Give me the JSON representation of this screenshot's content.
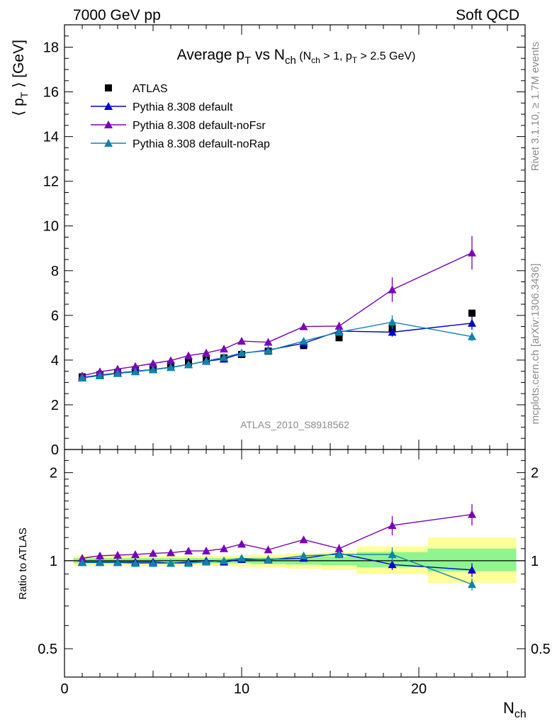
{
  "header": {
    "left": "7000 GeV pp",
    "right": "Soft QCD"
  },
  "side_labels": {
    "rivet": "Rivet 3.1.10, ≥ 1.7M events",
    "mcplots": "mcplots.cern.ch [arXiv:1306.3436]"
  },
  "analysis_id": "ATLAS_2010_S8918562",
  "chart_data": [
    {
      "type": "scatter",
      "title": "Average pT vs Nch (Nch > 1, pT > 2.5 GeV)",
      "ylabel": "⟨ pT ⟩ [GeV]",
      "xlabel": "Nch",
      "xlim": [
        0,
        26
      ],
      "ylim": [
        0,
        19
      ],
      "yticks": [
        0,
        2,
        4,
        6,
        8,
        10,
        12,
        14,
        16,
        18
      ],
      "xticks": [
        0,
        10,
        20
      ],
      "legend": [
        "ATLAS",
        "Pythia 8.308 default",
        "Pythia 8.308 default-noFsr",
        "Pythia 8.308 default-noRap"
      ],
      "legend_position": "top-left",
      "colors": {
        "data": "#000000",
        "default": "#0000cc",
        "noFsr": "#7a00b8",
        "noRap": "#0e84a8"
      },
      "x": [
        1,
        2,
        3,
        4,
        5,
        6,
        7,
        8,
        9,
        10,
        11.5,
        13.5,
        15.5,
        18.5,
        23
      ],
      "series": [
        {
          "name": "ATLAS",
          "marker": "square",
          "values": [
            3.25,
            3.35,
            3.45,
            3.55,
            3.65,
            3.78,
            3.9,
            4.0,
            4.1,
            4.25,
            4.4,
            4.65,
            5.0,
            5.4,
            6.1
          ]
        },
        {
          "name": "Pythia 8.308 default",
          "marker": "triangle",
          "values": [
            3.22,
            3.33,
            3.42,
            3.5,
            3.58,
            3.68,
            3.8,
            3.95,
            4.05,
            4.3,
            4.45,
            4.75,
            5.3,
            5.25,
            5.65
          ],
          "err": [
            0.04,
            0.04,
            0.04,
            0.04,
            0.04,
            0.04,
            0.05,
            0.05,
            0.06,
            0.07,
            0.08,
            0.1,
            0.15,
            0.2,
            0.3
          ]
        },
        {
          "name": "Pythia 8.308 default-noFsr",
          "marker": "triangle",
          "values": [
            3.3,
            3.48,
            3.6,
            3.72,
            3.85,
            3.98,
            4.2,
            4.32,
            4.5,
            4.85,
            4.8,
            5.5,
            5.52,
            7.15,
            8.8
          ],
          "err": [
            0.04,
            0.04,
            0.04,
            0.04,
            0.05,
            0.05,
            0.05,
            0.06,
            0.07,
            0.08,
            0.1,
            0.12,
            0.2,
            0.55,
            0.75
          ]
        },
        {
          "name": "Pythia 8.308 default-noRap",
          "marker": "triangle",
          "values": [
            3.2,
            3.3,
            3.4,
            3.48,
            3.57,
            3.67,
            3.8,
            3.96,
            4.12,
            4.32,
            4.42,
            4.85,
            5.25,
            5.7,
            5.05
          ],
          "err": [
            0.04,
            0.04,
            0.04,
            0.04,
            0.04,
            0.04,
            0.05,
            0.05,
            0.06,
            0.07,
            0.08,
            0.1,
            0.15,
            0.3,
            0.2
          ]
        }
      ]
    },
    {
      "type": "scatter",
      "ylabel": "Ratio to ATLAS",
      "xlabel": "Nch",
      "xlim": [
        0,
        26
      ],
      "ylim": [
        0.4,
        2.4
      ],
      "yscale": "log",
      "yticks": [
        0.5,
        1,
        2
      ],
      "xticks": [
        0,
        10,
        20
      ],
      "band_colors": {
        "inner": "#8ff58f",
        "outer": "#ffff99"
      },
      "bands": [
        {
          "x0": 0.5,
          "x1": 1.5,
          "inner": [
            0.98,
            1.02
          ],
          "outer": [
            0.96,
            1.04
          ]
        },
        {
          "x0": 1.5,
          "x1": 2.5,
          "inner": [
            0.98,
            1.02
          ],
          "outer": [
            0.96,
            1.04
          ]
        },
        {
          "x0": 2.5,
          "x1": 3.5,
          "inner": [
            0.98,
            1.02
          ],
          "outer": [
            0.96,
            1.04
          ]
        },
        {
          "x0": 3.5,
          "x1": 4.5,
          "inner": [
            0.98,
            1.02
          ],
          "outer": [
            0.96,
            1.04
          ]
        },
        {
          "x0": 4.5,
          "x1": 5.5,
          "inner": [
            0.98,
            1.02
          ],
          "outer": [
            0.96,
            1.04
          ]
        },
        {
          "x0": 5.5,
          "x1": 6.5,
          "inner": [
            0.98,
            1.02
          ],
          "outer": [
            0.96,
            1.04
          ]
        },
        {
          "x0": 6.5,
          "x1": 7.5,
          "inner": [
            0.98,
            1.02
          ],
          "outer": [
            0.96,
            1.04
          ]
        },
        {
          "x0": 7.5,
          "x1": 8.5,
          "inner": [
            0.98,
            1.02
          ],
          "outer": [
            0.96,
            1.04
          ]
        },
        {
          "x0": 8.5,
          "x1": 9.5,
          "inner": [
            0.98,
            1.02
          ],
          "outer": [
            0.96,
            1.04
          ]
        },
        {
          "x0": 9.5,
          "x1": 10.5,
          "inner": [
            0.98,
            1.02
          ],
          "outer": [
            0.955,
            1.045
          ]
        },
        {
          "x0": 10.5,
          "x1": 12.5,
          "inner": [
            0.975,
            1.025
          ],
          "outer": [
            0.95,
            1.05
          ]
        },
        {
          "x0": 12.5,
          "x1": 14.5,
          "inner": [
            0.97,
            1.03
          ],
          "outer": [
            0.94,
            1.06
          ]
        },
        {
          "x0": 14.5,
          "x1": 16.5,
          "inner": [
            0.965,
            1.035
          ],
          "outer": [
            0.93,
            1.07
          ]
        },
        {
          "x0": 16.5,
          "x1": 20.5,
          "inner": [
            0.95,
            1.07
          ],
          "outer": [
            0.9,
            1.12
          ]
        },
        {
          "x0": 20.5,
          "x1": 25.5,
          "inner": [
            0.92,
            1.1
          ],
          "outer": [
            0.84,
            1.2
          ]
        }
      ],
      "x": [
        1,
        2,
        3,
        4,
        5,
        6,
        7,
        8,
        9,
        10,
        11.5,
        13.5,
        15.5,
        18.5,
        23
      ],
      "series": [
        {
          "name": "Pythia 8.308 default",
          "values": [
            0.99,
            0.99,
            0.99,
            0.99,
            0.99,
            0.98,
            0.99,
            1.0,
            0.99,
            1.01,
            1.01,
            1.02,
            1.06,
            0.97,
            0.93
          ],
          "err": [
            0.01,
            0.01,
            0.01,
            0.01,
            0.01,
            0.01,
            0.01,
            0.01,
            0.01,
            0.015,
            0.015,
            0.02,
            0.03,
            0.04,
            0.05
          ]
        },
        {
          "name": "Pythia 8.308 default-noFsr",
          "values": [
            1.02,
            1.04,
            1.045,
            1.05,
            1.06,
            1.065,
            1.08,
            1.08,
            1.1,
            1.14,
            1.09,
            1.18,
            1.1,
            1.32,
            1.44
          ],
          "err": [
            0.01,
            0.01,
            0.01,
            0.01,
            0.01,
            0.01,
            0.012,
            0.013,
            0.015,
            0.02,
            0.02,
            0.03,
            0.04,
            0.1,
            0.12
          ]
        },
        {
          "name": "Pythia 8.308 default-noRap",
          "values": [
            0.985,
            0.985,
            0.985,
            0.98,
            0.98,
            0.98,
            0.98,
            0.99,
            1.0,
            1.02,
            1.005,
            1.04,
            1.05,
            1.05,
            0.83
          ],
          "err": [
            0.01,
            0.01,
            0.01,
            0.01,
            0.01,
            0.01,
            0.01,
            0.01,
            0.012,
            0.015,
            0.015,
            0.02,
            0.03,
            0.06,
            0.04
          ]
        }
      ]
    }
  ]
}
